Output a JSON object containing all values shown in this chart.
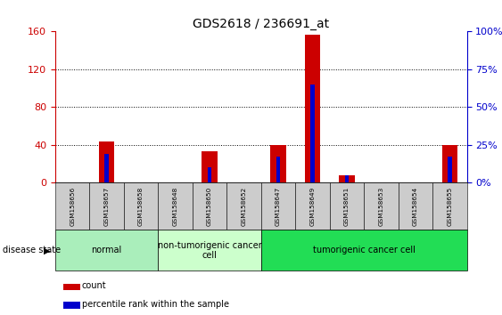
{
  "title": "GDS2618 / 236691_at",
  "samples": [
    "GSM158656",
    "GSM158657",
    "GSM158658",
    "GSM158648",
    "GSM158650",
    "GSM158652",
    "GSM158647",
    "GSM158649",
    "GSM158651",
    "GSM158653",
    "GSM158654",
    "GSM158655"
  ],
  "count_values": [
    0,
    44,
    0,
    0,
    33,
    0,
    40,
    157,
    8,
    0,
    0,
    40
  ],
  "percentile_values": [
    0,
    19,
    0,
    0,
    10,
    0,
    17,
    65,
    5,
    0,
    0,
    17
  ],
  "groups": [
    {
      "label": "normal",
      "start": 0,
      "end": 3,
      "color": "#aaeebb"
    },
    {
      "label": "non-tumorigenic cancer\ncell",
      "start": 3,
      "end": 6,
      "color": "#ccffcc"
    },
    {
      "label": "tumorigenic cancer cell",
      "start": 6,
      "end": 12,
      "color": "#22dd55"
    }
  ],
  "ylim_left": [
    0,
    160
  ],
  "ylim_right": [
    0,
    100
  ],
  "yticks_left": [
    0,
    40,
    80,
    120,
    160
  ],
  "yticks_right": [
    0,
    25,
    50,
    75,
    100
  ],
  "left_axis_color": "#CC0000",
  "right_axis_color": "#0000CC",
  "bar_color_count": "#CC0000",
  "bar_color_pct": "#0000CC",
  "tick_label_bg": "#CCCCCC",
  "figsize": [
    5.63,
    3.54
  ],
  "dpi": 100
}
